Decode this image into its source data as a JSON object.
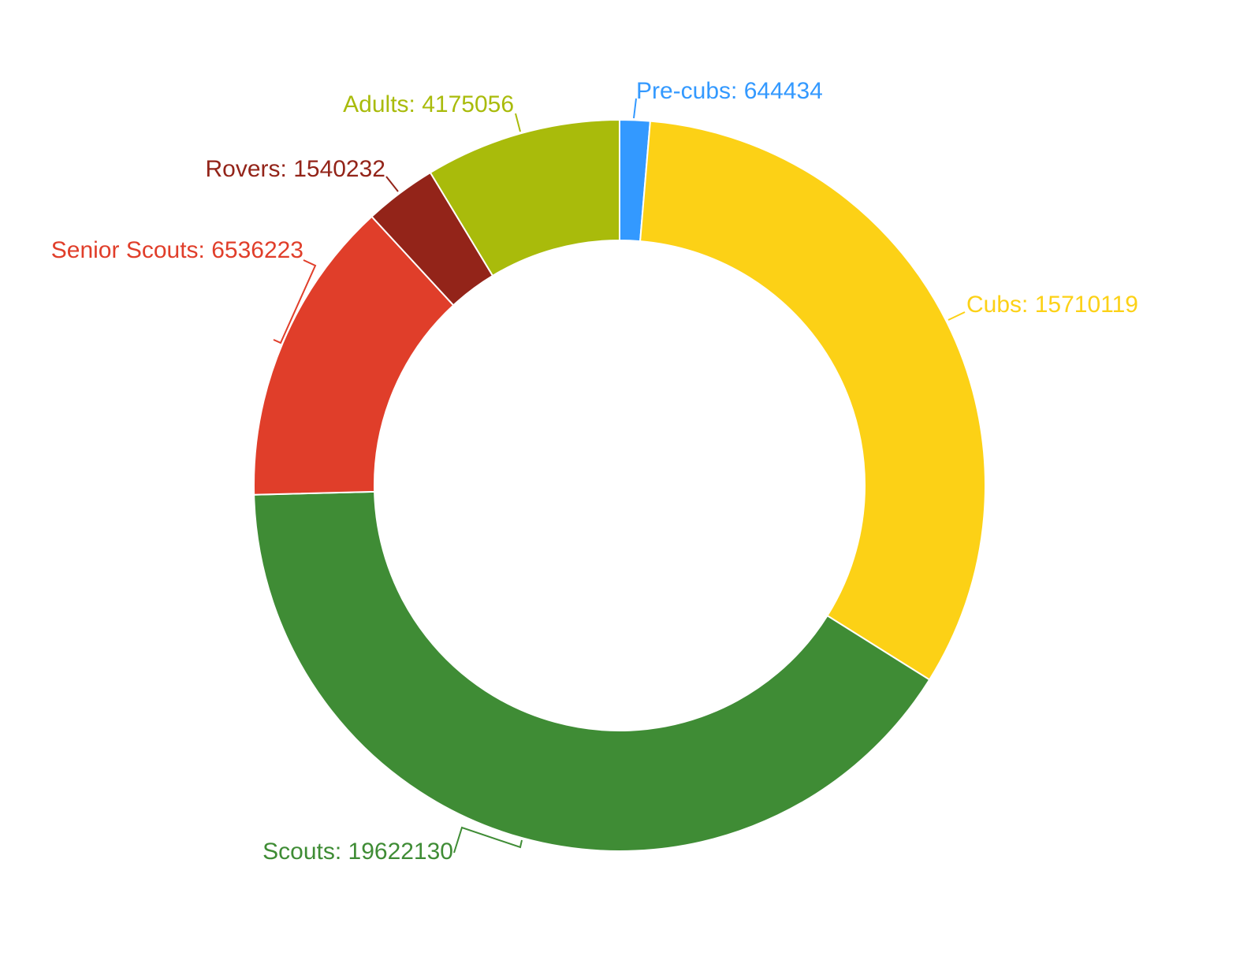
{
  "chart_data": {
    "type": "pie",
    "donut": true,
    "title": "",
    "slices": [
      {
        "label": "Pre-cubs: 644434",
        "name": "Pre-cubs",
        "value": 644434,
        "color": "#3399ff"
      },
      {
        "label": "Cubs: 15710119",
        "name": "Cubs",
        "value": 15710119,
        "color": "#fcd116"
      },
      {
        "label": "Scouts: 19622130",
        "name": "Scouts",
        "value": 19622130,
        "color": "#3f8c35"
      },
      {
        "label": "Senior Scouts: 6536223",
        "name": "Senior Scouts",
        "value": 6536223,
        "color": "#e03e2a"
      },
      {
        "label": "Rovers: 1540232",
        "name": "Rovers",
        "value": 1540232,
        "color": "#932419"
      },
      {
        "label": "Adults: 4175056",
        "name": "Adults",
        "value": 4175056,
        "color": "#a9bb0b"
      }
    ]
  }
}
